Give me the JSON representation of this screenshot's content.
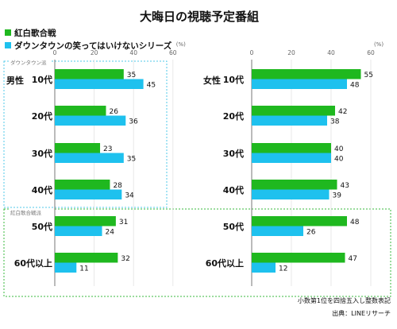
{
  "title": "大晦日の視聴予定番組",
  "legend": [
    {
      "label": "紅白歌合戦",
      "color": "#1fb81f"
    },
    {
      "label": "ダウンタウンの笑ってはいけないシリーズ",
      "color": "#1ec1ee"
    }
  ],
  "unit": "(%)",
  "groups": {
    "downtown": "ダウンタウン派",
    "kouhaku": "紅白歌合戦派"
  },
  "footnotes": {
    "rounding": "小数第1位を四捨五入し整数表記",
    "source": "出典：LINEリサーチ"
  },
  "chart_data": [
    {
      "type": "bar",
      "panel": "男性",
      "categories": [
        "10代",
        "20代",
        "30代",
        "40代",
        "50代",
        "60代以上"
      ],
      "series": [
        {
          "name": "紅白歌合戦",
          "values": [
            35,
            26,
            23,
            28,
            31,
            32
          ]
        },
        {
          "name": "ダウンタウンの笑ってはいけないシリーズ",
          "values": [
            45,
            36,
            35,
            34,
            24,
            11
          ]
        }
      ],
      "xlim": [
        0,
        60
      ],
      "ticks": [
        0,
        20,
        40,
        60
      ]
    },
    {
      "type": "bar",
      "panel": "女性",
      "categories": [
        "10代",
        "20代",
        "30代",
        "40代",
        "50代",
        "60代以上"
      ],
      "series": [
        {
          "name": "紅白歌合戦",
          "values": [
            55,
            42,
            40,
            43,
            48,
            47
          ]
        },
        {
          "name": "ダウンタウンの笑ってはいけないシリーズ",
          "values": [
            48,
            38,
            40,
            39,
            26,
            12
          ]
        }
      ],
      "xlim": [
        0,
        60
      ],
      "ticks": [
        0,
        20,
        40,
        60
      ]
    }
  ]
}
